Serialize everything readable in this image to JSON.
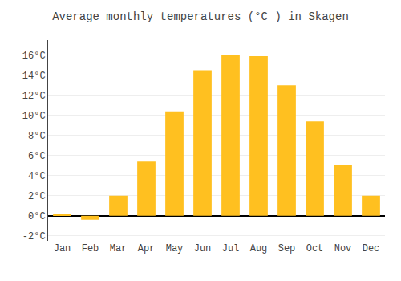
{
  "chart_data": {
    "type": "bar",
    "title": "Average monthly temperatures (°C ) in Skagen",
    "categories": [
      "Jan",
      "Feb",
      "Mar",
      "Apr",
      "May",
      "Jun",
      "Jul",
      "Aug",
      "Sep",
      "Oct",
      "Nov",
      "Dec"
    ],
    "values": [
      0.1,
      -0.4,
      2.0,
      5.4,
      10.4,
      14.5,
      16.0,
      15.9,
      13.0,
      9.4,
      5.1,
      2.0
    ],
    "color": "#FFC020",
    "ylim": [
      -2.5,
      17.5
    ],
    "yticks": [
      {
        "value": -2,
        "label": "-2°C"
      },
      {
        "value": 0,
        "label": "0°C"
      },
      {
        "value": 2,
        "label": "2°C"
      },
      {
        "value": 4,
        "label": "4°C"
      },
      {
        "value": 6,
        "label": "6°C"
      },
      {
        "value": 8,
        "label": "8°C"
      },
      {
        "value": 10,
        "label": "10°C"
      },
      {
        "value": 12,
        "label": "12°C"
      },
      {
        "value": 14,
        "label": "14°C"
      },
      {
        "value": 16,
        "label": "16°C"
      }
    ],
    "grid": true
  }
}
